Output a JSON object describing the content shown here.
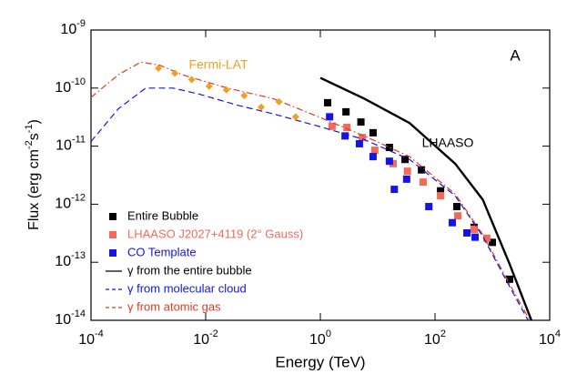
{
  "chart_data": {
    "type": "scatter",
    "log_x": true,
    "log_y": true,
    "panel_label": "A",
    "xlabel": "Energy (TeV)",
    "ylabel_parts": [
      {
        "text": "Flux (erg cm"
      },
      {
        "sup": "-2"
      },
      {
        "text": "s"
      },
      {
        "sup": "-1"
      },
      {
        "text": ")"
      }
    ],
    "xlim": [
      0.0001,
      10000.0
    ],
    "ylim": [
      1e-14,
      1e-09
    ],
    "xticks": [
      {
        "value": 0.0001,
        "label": "10",
        "sup": "-4"
      },
      {
        "value": 0.01,
        "label": "10",
        "sup": "-2"
      },
      {
        "value": 1,
        "label": "10",
        "sup": "0"
      },
      {
        "value": 100,
        "label": "10",
        "sup": "2"
      },
      {
        "value": 10000,
        "label": "10",
        "sup": "4"
      }
    ],
    "yticks": [
      {
        "value": 1e-14,
        "label": "10",
        "sup": "-14"
      },
      {
        "value": 1e-13,
        "label": "10",
        "sup": "-13"
      },
      {
        "value": 1e-12,
        "label": "10",
        "sup": "-12"
      },
      {
        "value": 1e-11,
        "label": "10",
        "sup": "-11"
      },
      {
        "value": 1e-10,
        "label": "10",
        "sup": "-10"
      },
      {
        "value": 1e-09,
        "label": "10",
        "sup": "-9"
      }
    ],
    "annotations": [
      "LHAASO"
    ],
    "series": [
      {
        "name": "Entire Bubble",
        "color": "#000000",
        "kind": "points",
        "legend": true,
        "x": [
          1.34,
          2.8,
          5.1,
          8.3,
          16,
          30,
          58,
          125,
          240,
          480,
          1000,
          2000
        ],
        "values": [
          5.6e-11,
          3.9e-11,
          2.6e-11,
          1.7e-11,
          9.5e-12,
          5.9e-12,
          3.9e-12,
          1.7e-12,
          9.1e-13,
          4e-13,
          2.2e-13,
          5.1e-14
        ]
      },
      {
        "name": "LHAASO J2027+4119 (2° Gauss)",
        "color": "#f26a5a",
        "kind": "points",
        "legend": true,
        "x": [
          1.6,
          2.9,
          5.4,
          8.9,
          18.6,
          33,
          62,
          125,
          250,
          480,
          800
        ],
        "values": [
          2.2e-11,
          2.1e-11,
          1.4e-11,
          8.5e-12,
          5e-12,
          3.7e-12,
          2.4e-12,
          1.4e-12,
          6.3e-13,
          3.7e-13,
          2.6e-13
        ]
      },
      {
        "name": "CO Template",
        "color": "#1414e6",
        "kind": "points",
        "legend": true,
        "x": [
          1.45,
          2.7,
          4.8,
          8.3,
          16,
          19.5,
          32,
          78,
          200,
          360,
          500
        ],
        "values": [
          3.2e-11,
          1.5e-11,
          1.1e-11,
          6.6e-12,
          5.5e-12,
          1.8e-12,
          2.7e-12,
          9.1e-13,
          4.8e-13,
          3.2e-13,
          2.7e-13
        ]
      },
      {
        "name": "γ from the entire bubble",
        "color": "#000000",
        "kind": "line",
        "dash": "solid",
        "legend": true,
        "x": [
          1,
          5.8,
          36,
          224,
          680,
          2000,
          4800
        ],
        "values": [
          1.5e-10,
          6.6e-11,
          2.5e-11,
          5e-12,
          1.2e-12,
          9.3e-14,
          1e-14
        ]
      },
      {
        "name": "γ from molecular cloud",
        "color": "#1414e6",
        "kind": "line",
        "dash": "dashed",
        "legend": true,
        "x": [
          0.0001,
          0.0003,
          0.0009,
          0.0027,
          0.008,
          0.035,
          0.15,
          0.93,
          5.8,
          36,
          224,
          680,
          2000,
          4200
        ],
        "values": [
          1.2e-11,
          4.4e-11,
          1e-10,
          1e-10,
          7.8e-11,
          5.1e-11,
          3.6e-11,
          2.2e-11,
          1.3e-11,
          5.9e-12,
          1.4e-12,
          2.8e-13,
          3.8e-14,
          1e-14
        ]
      },
      {
        "name": "γ from atomic gas",
        "color": "#e03a20",
        "kind": "line",
        "dash": "dashdot",
        "legend": true,
        "x": [
          0.0001,
          0.0003,
          0.00074,
          0.00155,
          0.0039,
          0.024,
          0.15,
          0.93,
          5.8,
          36,
          224,
          680,
          2000,
          4500
        ],
        "values": [
          6.9e-11,
          1.7e-10,
          2.8e-10,
          2.5e-10,
          1.7e-10,
          1e-10,
          6.6e-11,
          3.2e-11,
          1.5e-11,
          6.6e-12,
          1.5e-12,
          3e-13,
          4.2e-14,
          1e-14
        ]
      },
      {
        "name": "Fermi-LAT",
        "color": "#f0a020",
        "kind": "diamonds",
        "legend": false,
        "x": [
          0.0015,
          0.0029,
          0.0057,
          0.0115,
          0.023,
          0.047,
          0.093,
          0.19,
          0.37
        ],
        "values": [
          2.2e-10,
          1.8e-10,
          1.4e-10,
          1.07e-10,
          9.3e-11,
          7.4e-11,
          4.7e-11,
          5.8e-11,
          3.2e-11
        ]
      }
    ]
  }
}
